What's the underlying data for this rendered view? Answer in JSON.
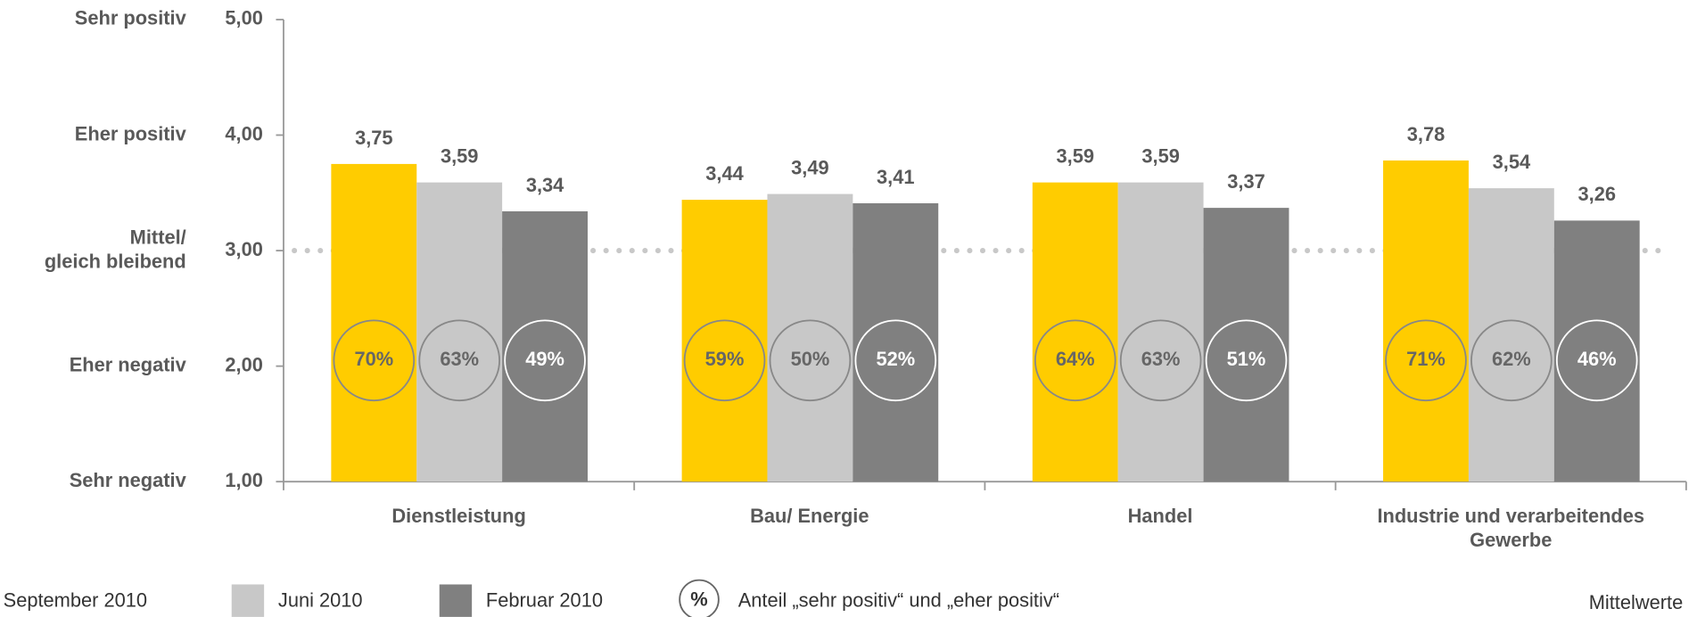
{
  "chart_data": {
    "type": "bar",
    "categories": [
      "Dienstleistung",
      "Bau/ Energie",
      "Handel",
      "Industrie und verarbeitendes\nGewerbe"
    ],
    "series": [
      {
        "name": "September 2010",
        "color": "#ffcc00",
        "values": [
          3.75,
          3.44,
          3.59,
          3.78
        ],
        "value_labels": [
          "3,75",
          "3,44",
          "3,59",
          "3,78"
        ],
        "shares": [
          70,
          59,
          64,
          71
        ],
        "share_labels": [
          "70%",
          "59%",
          "64%",
          "71%"
        ]
      },
      {
        "name": "Juni 2010",
        "color": "#c8c8c8",
        "values": [
          3.59,
          3.49,
          3.59,
          3.54
        ],
        "value_labels": [
          "3,59",
          "3,49",
          "3,59",
          "3,54"
        ],
        "shares": [
          63,
          50,
          63,
          62
        ],
        "share_labels": [
          "63%",
          "50%",
          "63%",
          "62%"
        ]
      },
      {
        "name": "Februar 2010",
        "color": "#808080",
        "values": [
          3.34,
          3.41,
          3.37,
          3.26
        ],
        "value_labels": [
          "3,34",
          "3,41",
          "3,37",
          "3,26"
        ],
        "shares": [
          49,
          52,
          51,
          46
        ],
        "share_labels": [
          "49%",
          "52%",
          "51%",
          "46%"
        ]
      }
    ],
    "ylim": [
      1,
      5
    ],
    "yticks": [
      {
        "value": 1,
        "label": "1,00"
      },
      {
        "value": 2,
        "label": "2,00"
      },
      {
        "value": 3,
        "label": "3,00"
      },
      {
        "value": 4,
        "label": "4,00"
      },
      {
        "value": 5,
        "label": "5,00"
      }
    ],
    "ytick_names": [
      "Sehr negativ",
      "Eher negativ",
      "Mittel/\ngleich bleibend",
      "Eher positiv",
      "Sehr positiv"
    ],
    "reference_line": 3,
    "share_legend": {
      "symbol": "%",
      "label": "Anteil „sehr positiv“ und „eher positiv“"
    },
    "note": "Mittelwerte"
  }
}
